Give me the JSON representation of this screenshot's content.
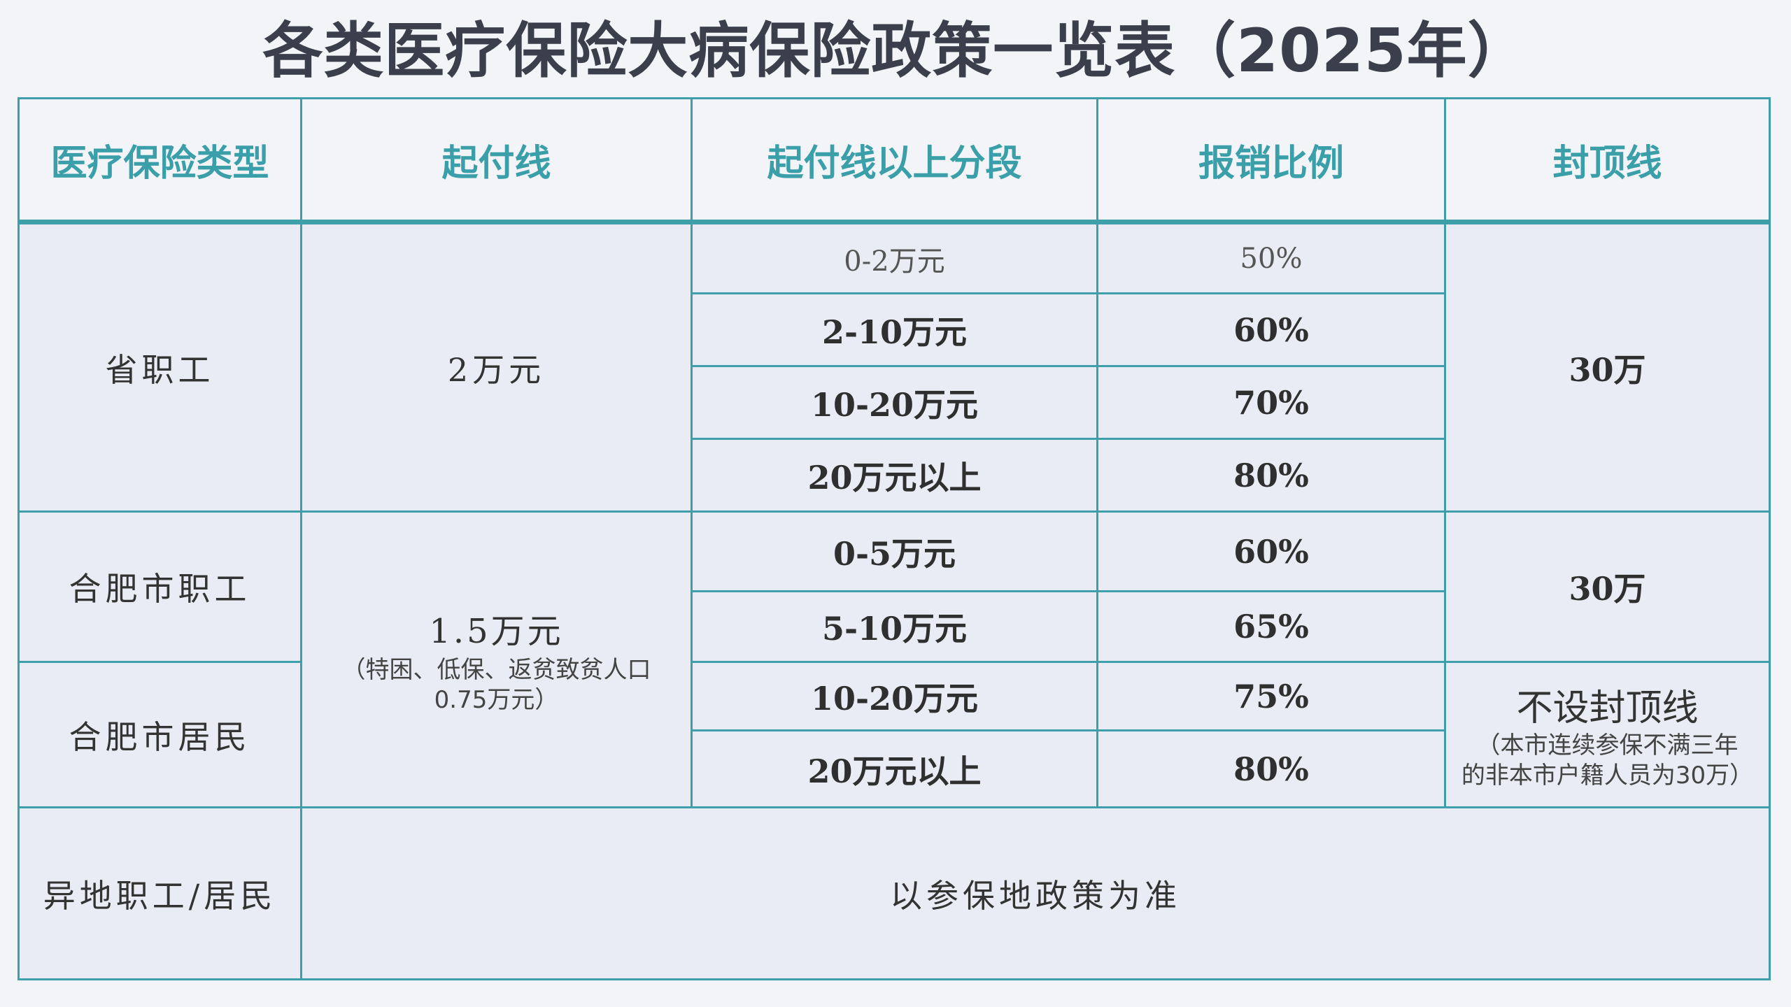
{
  "title": "各类医疗保险大病保险政策一览表（2025年）",
  "headers": [
    "医疗保险类型",
    "起付线",
    "起付线以上分段",
    "报销比例",
    "封顶线"
  ],
  "groups": {
    "provincial": {
      "type": "省职工",
      "deductible": "2万元",
      "cap": "30万",
      "rows": [
        {
          "segment": "0-2万元",
          "ratio": "50%"
        },
        {
          "segment": "2-10万元",
          "ratio": "60%"
        },
        {
          "segment": "10-20万元",
          "ratio": "70%"
        },
        {
          "segment": "20万元以上",
          "ratio": "80%"
        }
      ]
    },
    "hefei": {
      "employee_type": "合肥市职工",
      "resident_type": "合肥市居民",
      "deductible": "1.5万元",
      "deductible_note_1": "（特困、低保、返贫致贫人口",
      "deductible_note_2": "0.75万元）",
      "employee_cap": "30万",
      "resident_cap": "不设封顶线",
      "resident_cap_note_1": "（本市连续参保不满三年",
      "resident_cap_note_2": "的非本市户籍人员为30万）",
      "rows": [
        {
          "segment": "0-5万元",
          "ratio": "60%"
        },
        {
          "segment": "5-10万元",
          "ratio": "65%"
        },
        {
          "segment": "10-20万元",
          "ratio": "75%"
        },
        {
          "segment": "20万元以上",
          "ratio": "80%"
        }
      ]
    },
    "other": {
      "type": "异地职工/居民",
      "policy": "以参保地政策为准"
    }
  },
  "colors": {
    "background": "#f2f4f7",
    "header_text": "#3a9fa9",
    "border": "#3e9eaa",
    "cell_bg": "#e9ecf4",
    "title_text": "#3a3f4b"
  }
}
